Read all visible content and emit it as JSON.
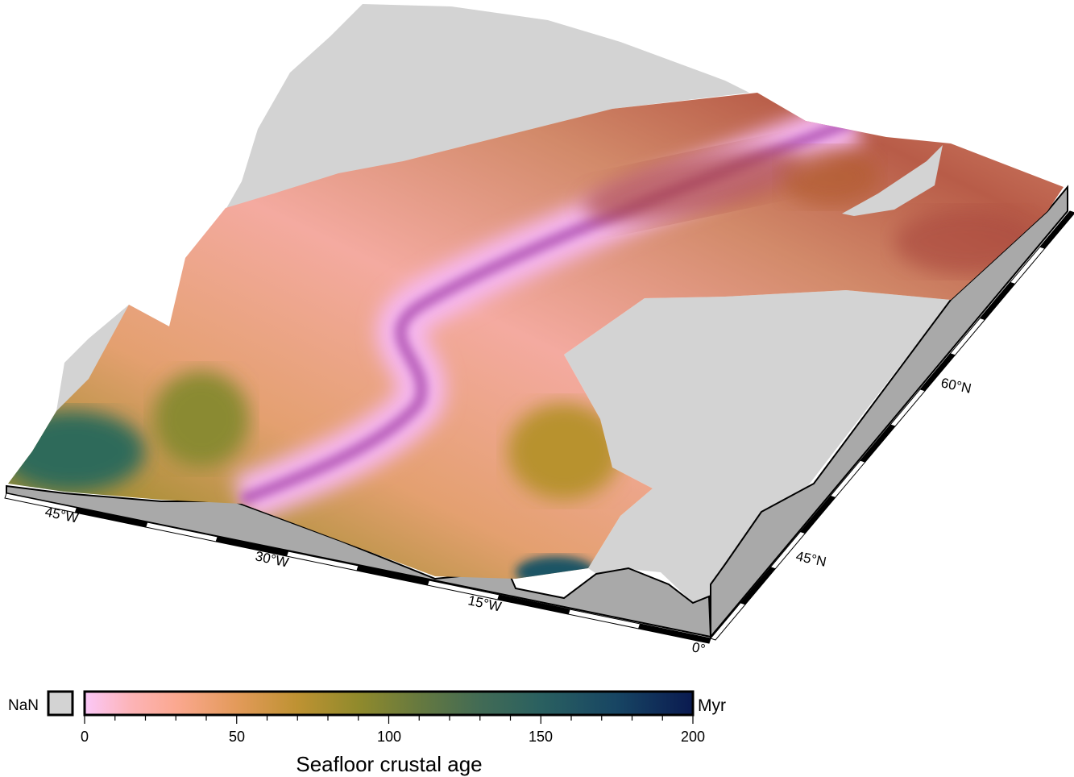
{
  "map": {
    "x_axis_labels": [
      "45°W",
      "30°W",
      "15°W",
      "0°"
    ],
    "y_axis_labels": [
      "45°N",
      "60°N"
    ],
    "colors": {
      "nan": "#d3d3d3",
      "wall": "#a9a9a9"
    }
  },
  "colorbar": {
    "nan_label": "NaN",
    "unit": "Myr",
    "title": "Seafloor crustal age",
    "range": [
      0,
      200
    ],
    "tick_labels": [
      "0",
      "50",
      "100",
      "150",
      "200"
    ],
    "minor_tick_step": 10,
    "color_stops": [
      {
        "value": 0,
        "color": "#fbc8f8"
      },
      {
        "value": 15,
        "color": "#fcb4b8"
      },
      {
        "value": 30,
        "color": "#fba890"
      },
      {
        "value": 50,
        "color": "#e39a5a"
      },
      {
        "value": 70,
        "color": "#be9232"
      },
      {
        "value": 90,
        "color": "#908a2c"
      },
      {
        "value": 110,
        "color": "#66793f"
      },
      {
        "value": 130,
        "color": "#426b55"
      },
      {
        "value": 150,
        "color": "#2a6060"
      },
      {
        "value": 175,
        "color": "#174563"
      },
      {
        "value": 200,
        "color": "#0a1a50"
      }
    ]
  }
}
